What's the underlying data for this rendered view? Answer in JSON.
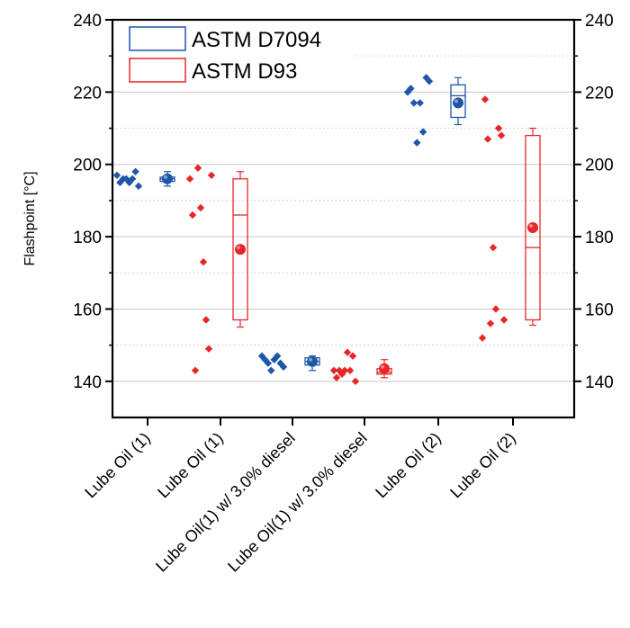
{
  "chart_data": {
    "type": "box-scatter",
    "ylabel": "Flashpoint [°C]",
    "ylim": [
      130,
      240
    ],
    "yticks": [
      140,
      160,
      180,
      200,
      220,
      240
    ],
    "ytick_labels": [
      "140",
      "160",
      "180",
      "200",
      "220",
      "240"
    ],
    "minor_grid": [
      150,
      170,
      190,
      210,
      230
    ],
    "major_grid": [
      140,
      160,
      180,
      200,
      220
    ],
    "grid": true,
    "legend_position": "top-left",
    "categories": [
      "Lube Oil (1)",
      "Lube Oil (1)",
      "Lube Oil(1) w/ 3.0% diesel",
      "Lube Oil(1) w/ 3.0% diesel",
      "Lube Oil (2)",
      "Lube Oil (2)"
    ],
    "series": [
      {
        "name": "ASTM D7094",
        "color": "#1f57a8",
        "groups": [
          {
            "category_index": 0,
            "points": [
              197,
              195,
              196,
              196,
              195,
              196,
              198,
              194
            ],
            "box": {
              "q1": 195.3,
              "median": 196,
              "q3": 196.5,
              "whisker_low": 194,
              "whisker_high": 198
            },
            "mean": 196
          },
          {
            "category_index": 2,
            "points": [
              147,
              146,
              145,
              143,
              146,
              147,
              145,
              144
            ],
            "box": {
              "q1": 144.5,
              "median": 145.5,
              "q3": 146.5,
              "whisker_low": 143,
              "whisker_high": 147
            },
            "mean": 145.5
          },
          {
            "category_index": 4,
            "points": [
              220,
              221,
              217,
              206,
              217,
              209,
              224,
              223
            ],
            "box": {
              "q1": 213,
              "median": 219,
              "q3": 222,
              "whisker_low": 211,
              "whisker_high": 224
            },
            "mean": 217
          }
        ]
      },
      {
        "name": "ASTM D93",
        "color": "#e8262a",
        "groups": [
          {
            "category_index": 1,
            "points": [
              196,
              186,
              143,
              199,
              188,
              173,
              157,
              149,
              197
            ],
            "box": {
              "q1": 157,
              "median": 186,
              "q3": 196,
              "whisker_low": 155,
              "whisker_high": 198
            },
            "mean": 176.5
          },
          {
            "category_index": 3,
            "points": [
              143,
              141,
              143,
              142,
              143,
              148,
              143,
              147,
              140
            ],
            "box": {
              "q1": 142,
              "median": 142.5,
              "q3": 143.5,
              "whisker_low": 141,
              "whisker_high": 146
            },
            "mean": 143.5
          },
          {
            "category_index": 5,
            "points": [
              152,
              218,
              207,
              156,
              177,
              160,
              210,
              208,
              157
            ],
            "box": {
              "q1": 157,
              "median": 177,
              "q3": 208,
              "whisker_low": 155.5,
              "whisker_high": 210
            },
            "mean": 182.5
          }
        ]
      }
    ]
  }
}
